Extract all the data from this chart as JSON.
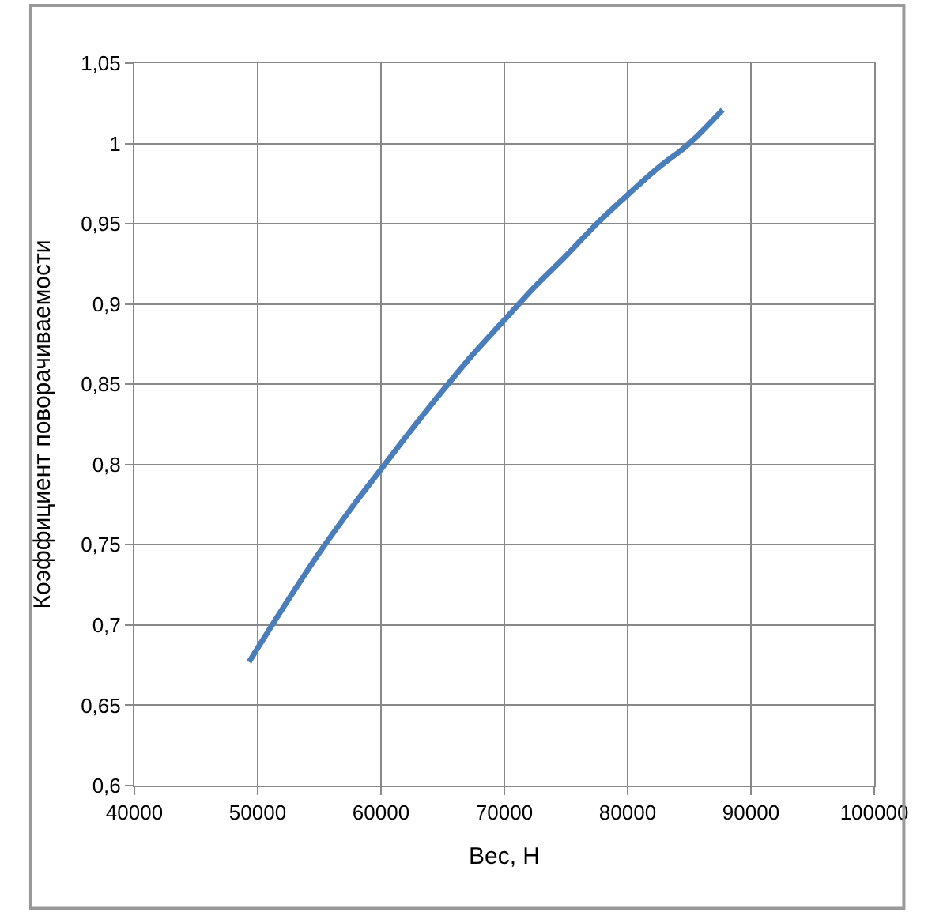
{
  "chart_data": {
    "type": "line",
    "xlabel": "Вес, Н",
    "ylabel": "Коэффициент поворачиваемости",
    "x": [
      49300,
      52000,
      55000,
      58000,
      60000,
      62500,
      65000,
      67500,
      70000,
      72500,
      75000,
      77500,
      80000,
      82500,
      85000,
      87700
    ],
    "series": [
      {
        "color": "#4a7ebb",
        "values": [
          0.677,
          0.71,
          0.745,
          0.777,
          0.797,
          0.822,
          0.846,
          0.869,
          0.89,
          0.911,
          0.93,
          0.95,
          0.968,
          0.985,
          1.0,
          1.021
        ]
      }
    ],
    "xlim": [
      40000,
      100000
    ],
    "xticks": [
      40000,
      50000,
      60000,
      70000,
      80000,
      90000,
      100000
    ],
    "ylim": [
      0.6,
      1.05
    ],
    "yticks": [
      {
        "value": 0.6,
        "label": "0,6"
      },
      {
        "value": 0.65,
        "label": "0,65"
      },
      {
        "value": 0.7,
        "label": "0,7"
      },
      {
        "value": 0.75,
        "label": "0,75"
      },
      {
        "value": 0.8,
        "label": "0,8"
      },
      {
        "value": 0.85,
        "label": "0,85"
      },
      {
        "value": 0.9,
        "label": "0,9"
      },
      {
        "value": 0.95,
        "label": "0,95"
      },
      {
        "value": 1,
        "label": "1"
      },
      {
        "value": 1.05,
        "label": "1,05"
      }
    ],
    "grid": true,
    "legend": false,
    "marker": "none",
    "line_style": "solid"
  }
}
